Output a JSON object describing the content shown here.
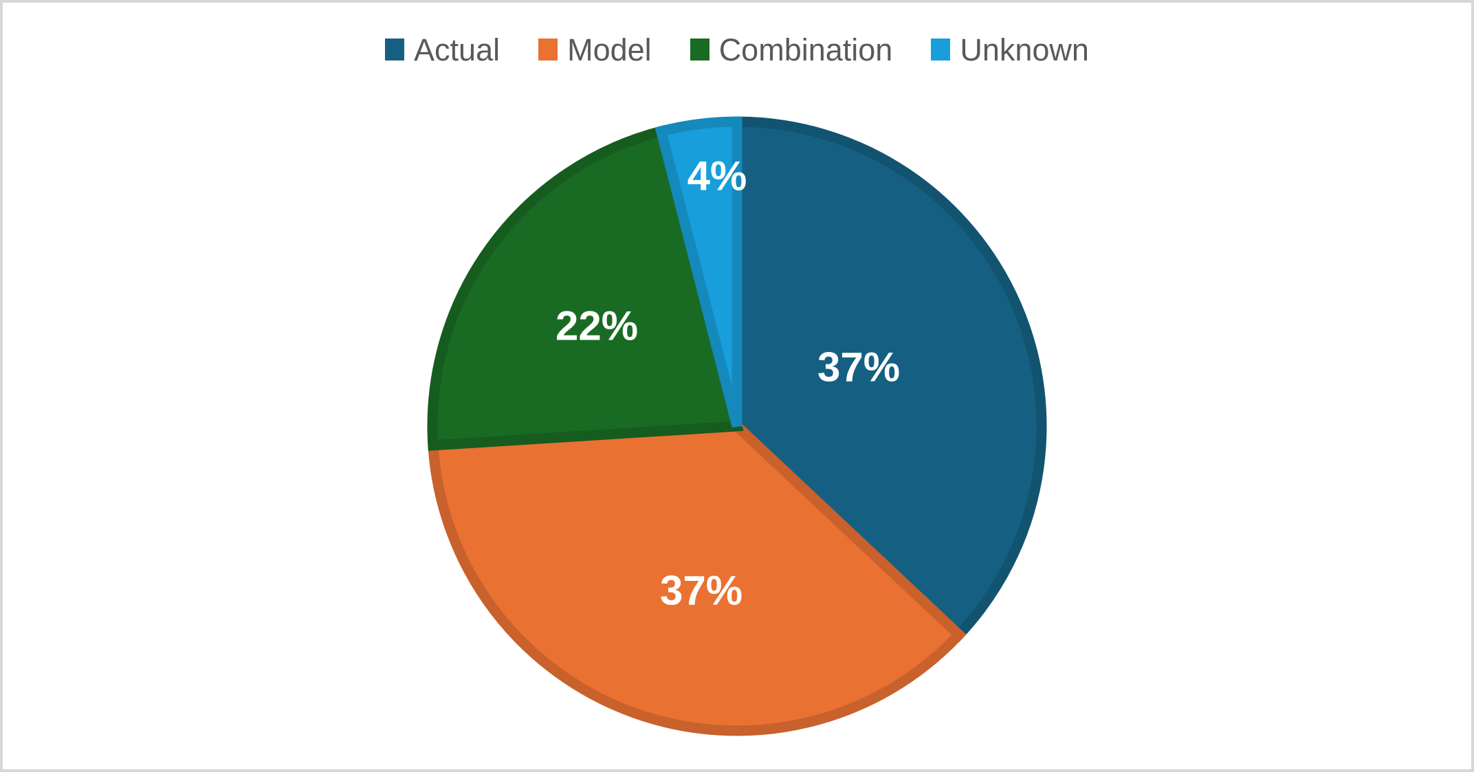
{
  "frame": {
    "background": "#FFFFFF",
    "border_color": "#D7D7D7"
  },
  "legend": {
    "position": "top-center",
    "text_color": "#595959",
    "items": [
      "Actual",
      "Model",
      "Combination",
      "Unknown"
    ]
  },
  "chart_data": {
    "type": "pie",
    "title": "",
    "categories": [
      "Actual",
      "Model",
      "Combination",
      "Unknown"
    ],
    "values": [
      37,
      37,
      22,
      4
    ],
    "data_labels": [
      "37%",
      "37%",
      "22%",
      "4%"
    ],
    "colors": [
      "#156082",
      "#E97132",
      "#196B24",
      "#189FDB"
    ],
    "data_label_color": "#FFFFFF",
    "slice_border_style": "darker-shade-of-fill",
    "start_angle_deg": 0,
    "direction": "clockwise",
    "legend_position": "top"
  }
}
